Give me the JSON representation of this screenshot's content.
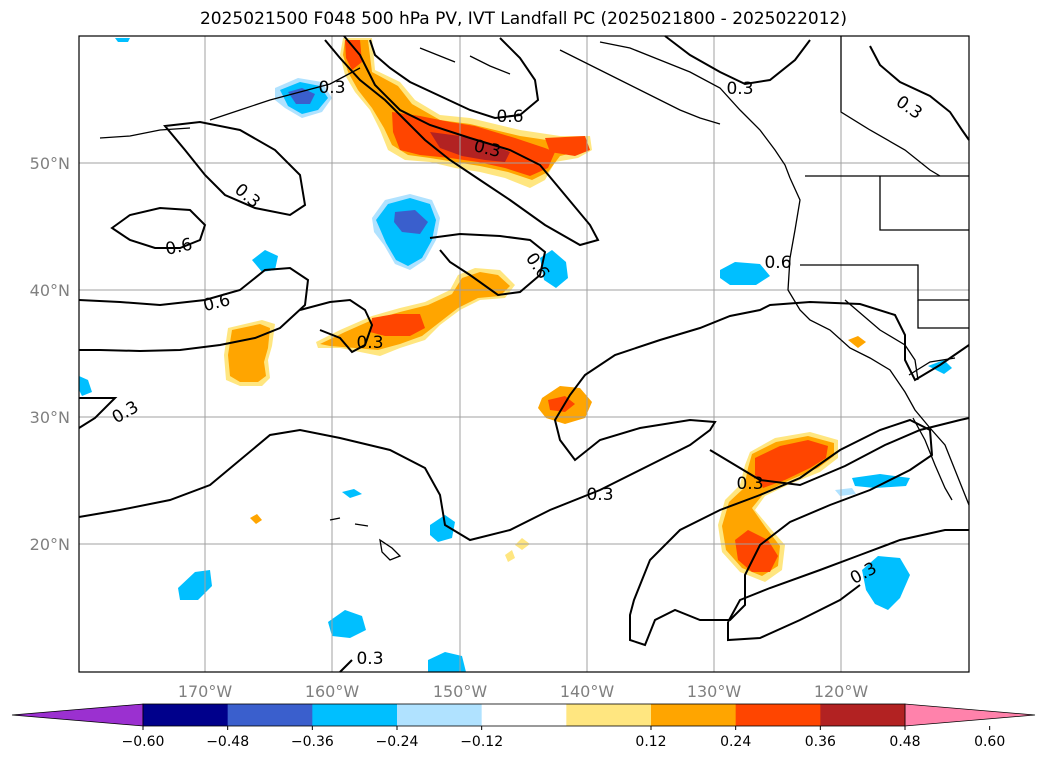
{
  "title": "2025021500 F048 500 hPa PV, IVT Landfall PC (2025021800 - 2025022012)",
  "lat_labels": [
    "50°N",
    "40°N",
    "30°N",
    "20°N"
  ],
  "lon_labels": [
    "170°W",
    "160°W",
    "150°W",
    "140°W",
    "130°W",
    "120°W"
  ],
  "contour_labels": [
    "0.3",
    "0.3",
    "0.6",
    "0.3",
    "0.6",
    "0.3",
    "0.6",
    "0.6",
    "0.6",
    "0.3",
    "0.3",
    "0.3",
    "0.3",
    "0.3",
    "0.3",
    "0.3"
  ],
  "colorbar": {
    "ticks": [
      "−0.60",
      "−0.48",
      "−0.36",
      "−0.24",
      "−0.12",
      "0.12",
      "0.24",
      "0.36",
      "0.48",
      "0.60"
    ],
    "colors": [
      "#9b30d0",
      "#00008b",
      "#3a5fcd",
      "#00bfff",
      "#b0e2ff",
      "#ffffff",
      "#ffe680",
      "#ffa500",
      "#ff4500",
      "#b22222",
      "#ff82ab"
    ],
    "range": [
      -0.6,
      0.6
    ],
    "extend": "both"
  },
  "shading_colors": {
    "pos_weak": "#ffe680",
    "pos_mid": "#ffa500",
    "pos_strong": "#ff4500",
    "pos_max": "#b22222",
    "neg_weak": "#b0e2ff",
    "neg_mid": "#00bfff",
    "neg_strong": "#3a5fcd",
    "neg_max": "#00008b"
  }
}
